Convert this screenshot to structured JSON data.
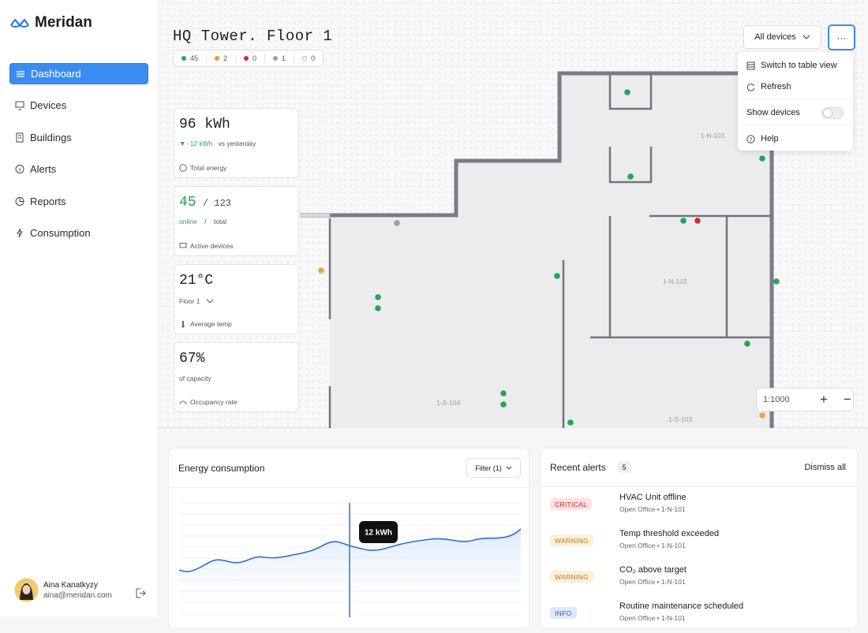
{
  "brand": "Meridan",
  "nav": [
    "Dashboard",
    "Devices",
    "Buildings",
    "Alerts",
    "Reports",
    "Consumption"
  ],
  "user": {
    "name": "Aina Kanatkyzy",
    "email": "aina@meridan.com"
  },
  "floor": {
    "title": "HQ Tower. Floor 1",
    "status_counts": [
      45,
      2,
      0,
      1,
      0
    ]
  },
  "device_filter": "All devices",
  "menu": {
    "items": [
      "Switch to table view",
      "Refresh",
      "Show devices",
      "Help"
    ]
  },
  "stats": {
    "energy": {
      "value": "96 kWh",
      "delta": "-12 kWh",
      "delta_note": "vs yesterday",
      "label": "Total energy"
    },
    "devices": {
      "online": 45,
      "total": "/ 123",
      "online_label": "online",
      "separator": "/",
      "total_label": "total",
      "label": "Active devices"
    },
    "temp": {
      "value": "21°C",
      "floor": "Floor 1",
      "label": "Average temp"
    },
    "occupancy": {
      "value": "67%",
      "note": "of capacity",
      "label": "Occupancy rate"
    }
  },
  "map": {
    "rooms": [
      "1-N-101",
      "1-N-102",
      "1-S-104",
      "1-S-103"
    ],
    "scale": "1:1000"
  },
  "energy": {
    "title": "Energy consumption",
    "filter": "Filter (1)",
    "tooltip": "12 kWh"
  },
  "alerts": {
    "title": "Recent alerts",
    "count": 5,
    "dismiss": "Dismiss all",
    "items": [
      {
        "level": "CRITICAL",
        "title": "HVAC Unit offline",
        "location": "Open Office • 1-N-101"
      },
      {
        "level": "WARNING",
        "title": "Temp threshold exceeded",
        "location": "Open Office • 1-N-101"
      },
      {
        "level": "WARNING",
        "title": "CO₂ above target",
        "location": "Open Office • 1-N-101"
      },
      {
        "level": "INFO",
        "title": "Routine maintenance scheduled",
        "location": "Open Office • 1-N-101"
      }
    ]
  }
}
